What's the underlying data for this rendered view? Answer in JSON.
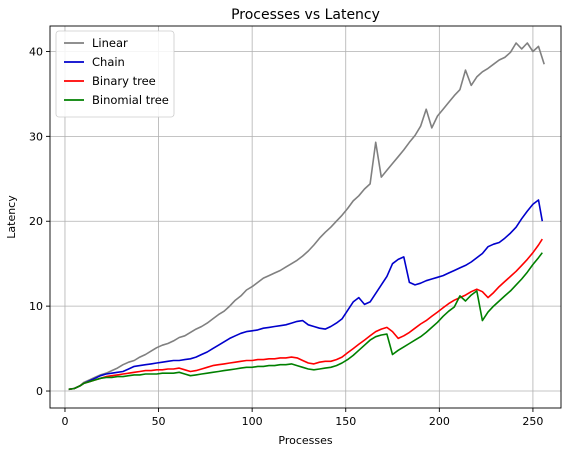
{
  "chart_data": {
    "type": "line",
    "title": "Processes vs Latency",
    "xlabel": "Processes",
    "ylabel": "Latency",
    "xlim": [
      -8,
      265
    ],
    "ylim": [
      -2,
      43
    ],
    "xticks": [
      0,
      50,
      100,
      150,
      200,
      250
    ],
    "yticks": [
      0,
      10,
      20,
      30,
      40
    ],
    "grid": true,
    "legend_position": "top-left",
    "series": [
      {
        "name": "Linear",
        "color": "#808080",
        "x": [
          2,
          5,
          8,
          10,
          13,
          16,
          19,
          22,
          25,
          28,
          31,
          34,
          37,
          40,
          43,
          46,
          49,
          52,
          55,
          58,
          61,
          64,
          67,
          70,
          73,
          76,
          79,
          82,
          85,
          88,
          91,
          94,
          97,
          100,
          103,
          106,
          109,
          112,
          115,
          118,
          121,
          124,
          127,
          130,
          133,
          136,
          139,
          142,
          145,
          148,
          151,
          154,
          157,
          160,
          163,
          166,
          169,
          172,
          175,
          178,
          181,
          184,
          187,
          190,
          193,
          196,
          199,
          202,
          205,
          208,
          211,
          214,
          217,
          220,
          223,
          226,
          229,
          232,
          235,
          238,
          241,
          244,
          247,
          250,
          253,
          256
        ],
        "y": [
          0.2,
          0.3,
          0.6,
          1.0,
          1.3,
          1.6,
          1.9,
          2.1,
          2.4,
          2.7,
          3.1,
          3.4,
          3.6,
          4.0,
          4.3,
          4.7,
          5.1,
          5.4,
          5.6,
          5.9,
          6.3,
          6.5,
          6.9,
          7.3,
          7.6,
          8.0,
          8.5,
          9.0,
          9.4,
          10.0,
          10.7,
          11.2,
          11.9,
          12.3,
          12.8,
          13.3,
          13.6,
          13.9,
          14.2,
          14.6,
          15.0,
          15.4,
          15.9,
          16.5,
          17.2,
          18.0,
          18.7,
          19.3,
          20.0,
          20.7,
          21.5,
          22.4,
          23.0,
          23.8,
          24.4,
          29.3,
          25.2,
          26.0,
          26.8,
          27.6,
          28.4,
          29.3,
          30.1,
          31.2,
          33.2,
          31.0,
          32.4,
          33.2,
          34.0,
          34.8,
          35.5,
          37.8,
          36.0,
          37.0,
          37.6,
          38.0,
          38.5,
          39.0,
          39.3,
          39.9,
          41.0,
          40.3,
          41.0,
          40.0,
          40.6,
          38.5
        ]
      },
      {
        "name": "Chain",
        "color": "#0000cc",
        "x": [
          2,
          5,
          8,
          10,
          13,
          16,
          19,
          22,
          25,
          28,
          31,
          34,
          37,
          40,
          43,
          46,
          49,
          52,
          55,
          58,
          61,
          64,
          67,
          70,
          73,
          76,
          79,
          82,
          85,
          88,
          91,
          94,
          97,
          100,
          103,
          106,
          109,
          112,
          115,
          118,
          121,
          124,
          127,
          130,
          133,
          136,
          139,
          142,
          145,
          148,
          151,
          154,
          157,
          160,
          163,
          166,
          169,
          172,
          175,
          178,
          181,
          184,
          187,
          190,
          193,
          196,
          199,
          202,
          205,
          208,
          211,
          214,
          217,
          220,
          223,
          226,
          229,
          232,
          235,
          238,
          241,
          244,
          247,
          250,
          253,
          255
        ],
        "y": [
          0.2,
          0.3,
          0.6,
          0.9,
          1.2,
          1.5,
          1.8,
          2.0,
          2.1,
          2.2,
          2.3,
          2.6,
          2.9,
          3.0,
          3.1,
          3.2,
          3.3,
          3.4,
          3.5,
          3.6,
          3.6,
          3.7,
          3.8,
          4.0,
          4.3,
          4.6,
          5.0,
          5.4,
          5.8,
          6.2,
          6.5,
          6.8,
          7.0,
          7.1,
          7.2,
          7.4,
          7.5,
          7.6,
          7.7,
          7.8,
          8.0,
          8.2,
          8.3,
          7.8,
          7.6,
          7.4,
          7.3,
          7.6,
          8.0,
          8.5,
          9.5,
          10.5,
          11.0,
          10.2,
          10.5,
          11.5,
          12.5,
          13.5,
          15.0,
          15.5,
          15.8,
          12.8,
          12.5,
          12.7,
          13.0,
          13.2,
          13.4,
          13.6,
          13.9,
          14.2,
          14.5,
          14.8,
          15.2,
          15.7,
          16.2,
          17.0,
          17.3,
          17.5,
          18.0,
          18.6,
          19.3,
          20.3,
          21.2,
          22.0,
          22.5,
          20.0
        ]
      },
      {
        "name": "Binary tree",
        "color": "#ff0000",
        "x": [
          2,
          5,
          8,
          10,
          13,
          16,
          19,
          22,
          25,
          28,
          31,
          34,
          37,
          40,
          43,
          46,
          49,
          52,
          55,
          58,
          61,
          64,
          67,
          70,
          73,
          76,
          79,
          82,
          85,
          88,
          91,
          94,
          97,
          100,
          103,
          106,
          109,
          112,
          115,
          118,
          121,
          124,
          127,
          130,
          133,
          136,
          139,
          142,
          145,
          148,
          151,
          154,
          157,
          160,
          163,
          166,
          169,
          172,
          175,
          178,
          181,
          184,
          187,
          190,
          193,
          196,
          199,
          202,
          205,
          208,
          211,
          214,
          217,
          220,
          223,
          226,
          229,
          232,
          235,
          238,
          241,
          244,
          247,
          250,
          253,
          255
        ],
        "y": [
          0.2,
          0.3,
          0.6,
          0.9,
          1.1,
          1.3,
          1.5,
          1.7,
          1.8,
          1.9,
          2.0,
          2.1,
          2.2,
          2.3,
          2.4,
          2.4,
          2.5,
          2.5,
          2.6,
          2.6,
          2.7,
          2.5,
          2.3,
          2.4,
          2.6,
          2.8,
          3.0,
          3.1,
          3.2,
          3.3,
          3.4,
          3.5,
          3.6,
          3.6,
          3.7,
          3.7,
          3.8,
          3.8,
          3.9,
          3.9,
          4.0,
          3.9,
          3.6,
          3.3,
          3.2,
          3.4,
          3.5,
          3.5,
          3.7,
          4.0,
          4.5,
          5.0,
          5.5,
          6.0,
          6.5,
          7.0,
          7.3,
          7.5,
          7.0,
          6.2,
          6.5,
          6.9,
          7.4,
          7.9,
          8.3,
          8.8,
          9.3,
          9.8,
          10.3,
          10.7,
          11.0,
          11.3,
          11.7,
          12.0,
          11.7,
          11.0,
          11.6,
          12.3,
          12.9,
          13.5,
          14.1,
          14.8,
          15.5,
          16.3,
          17.2,
          17.9
        ]
      },
      {
        "name": "Binomial tree",
        "color": "#008000",
        "x": [
          2,
          5,
          8,
          10,
          13,
          16,
          19,
          22,
          25,
          28,
          31,
          34,
          37,
          40,
          43,
          46,
          49,
          52,
          55,
          58,
          61,
          64,
          67,
          70,
          73,
          76,
          79,
          82,
          85,
          88,
          91,
          94,
          97,
          100,
          103,
          106,
          109,
          112,
          115,
          118,
          121,
          124,
          127,
          130,
          133,
          136,
          139,
          142,
          145,
          148,
          151,
          154,
          157,
          160,
          163,
          166,
          169,
          172,
          175,
          178,
          181,
          184,
          187,
          190,
          193,
          196,
          199,
          202,
          205,
          208,
          211,
          214,
          217,
          220,
          223,
          226,
          229,
          232,
          235,
          238,
          241,
          244,
          247,
          250,
          253,
          255
        ],
        "y": [
          0.2,
          0.3,
          0.6,
          0.9,
          1.1,
          1.3,
          1.5,
          1.6,
          1.6,
          1.7,
          1.7,
          1.8,
          1.9,
          1.9,
          2.0,
          2.0,
          2.0,
          2.1,
          2.1,
          2.1,
          2.2,
          2.0,
          1.8,
          1.9,
          2.0,
          2.1,
          2.2,
          2.3,
          2.4,
          2.5,
          2.6,
          2.7,
          2.8,
          2.8,
          2.9,
          2.9,
          3.0,
          3.0,
          3.1,
          3.1,
          3.2,
          3.0,
          2.8,
          2.6,
          2.5,
          2.6,
          2.7,
          2.8,
          3.0,
          3.3,
          3.7,
          4.2,
          4.8,
          5.4,
          6.0,
          6.4,
          6.6,
          6.7,
          4.3,
          4.8,
          5.2,
          5.6,
          6.0,
          6.4,
          6.9,
          7.5,
          8.1,
          8.8,
          9.4,
          9.9,
          11.2,
          10.6,
          11.3,
          11.8,
          8.3,
          9.3,
          10.0,
          10.6,
          11.2,
          11.8,
          12.5,
          13.2,
          14.0,
          14.9,
          15.7,
          16.3
        ]
      }
    ]
  }
}
